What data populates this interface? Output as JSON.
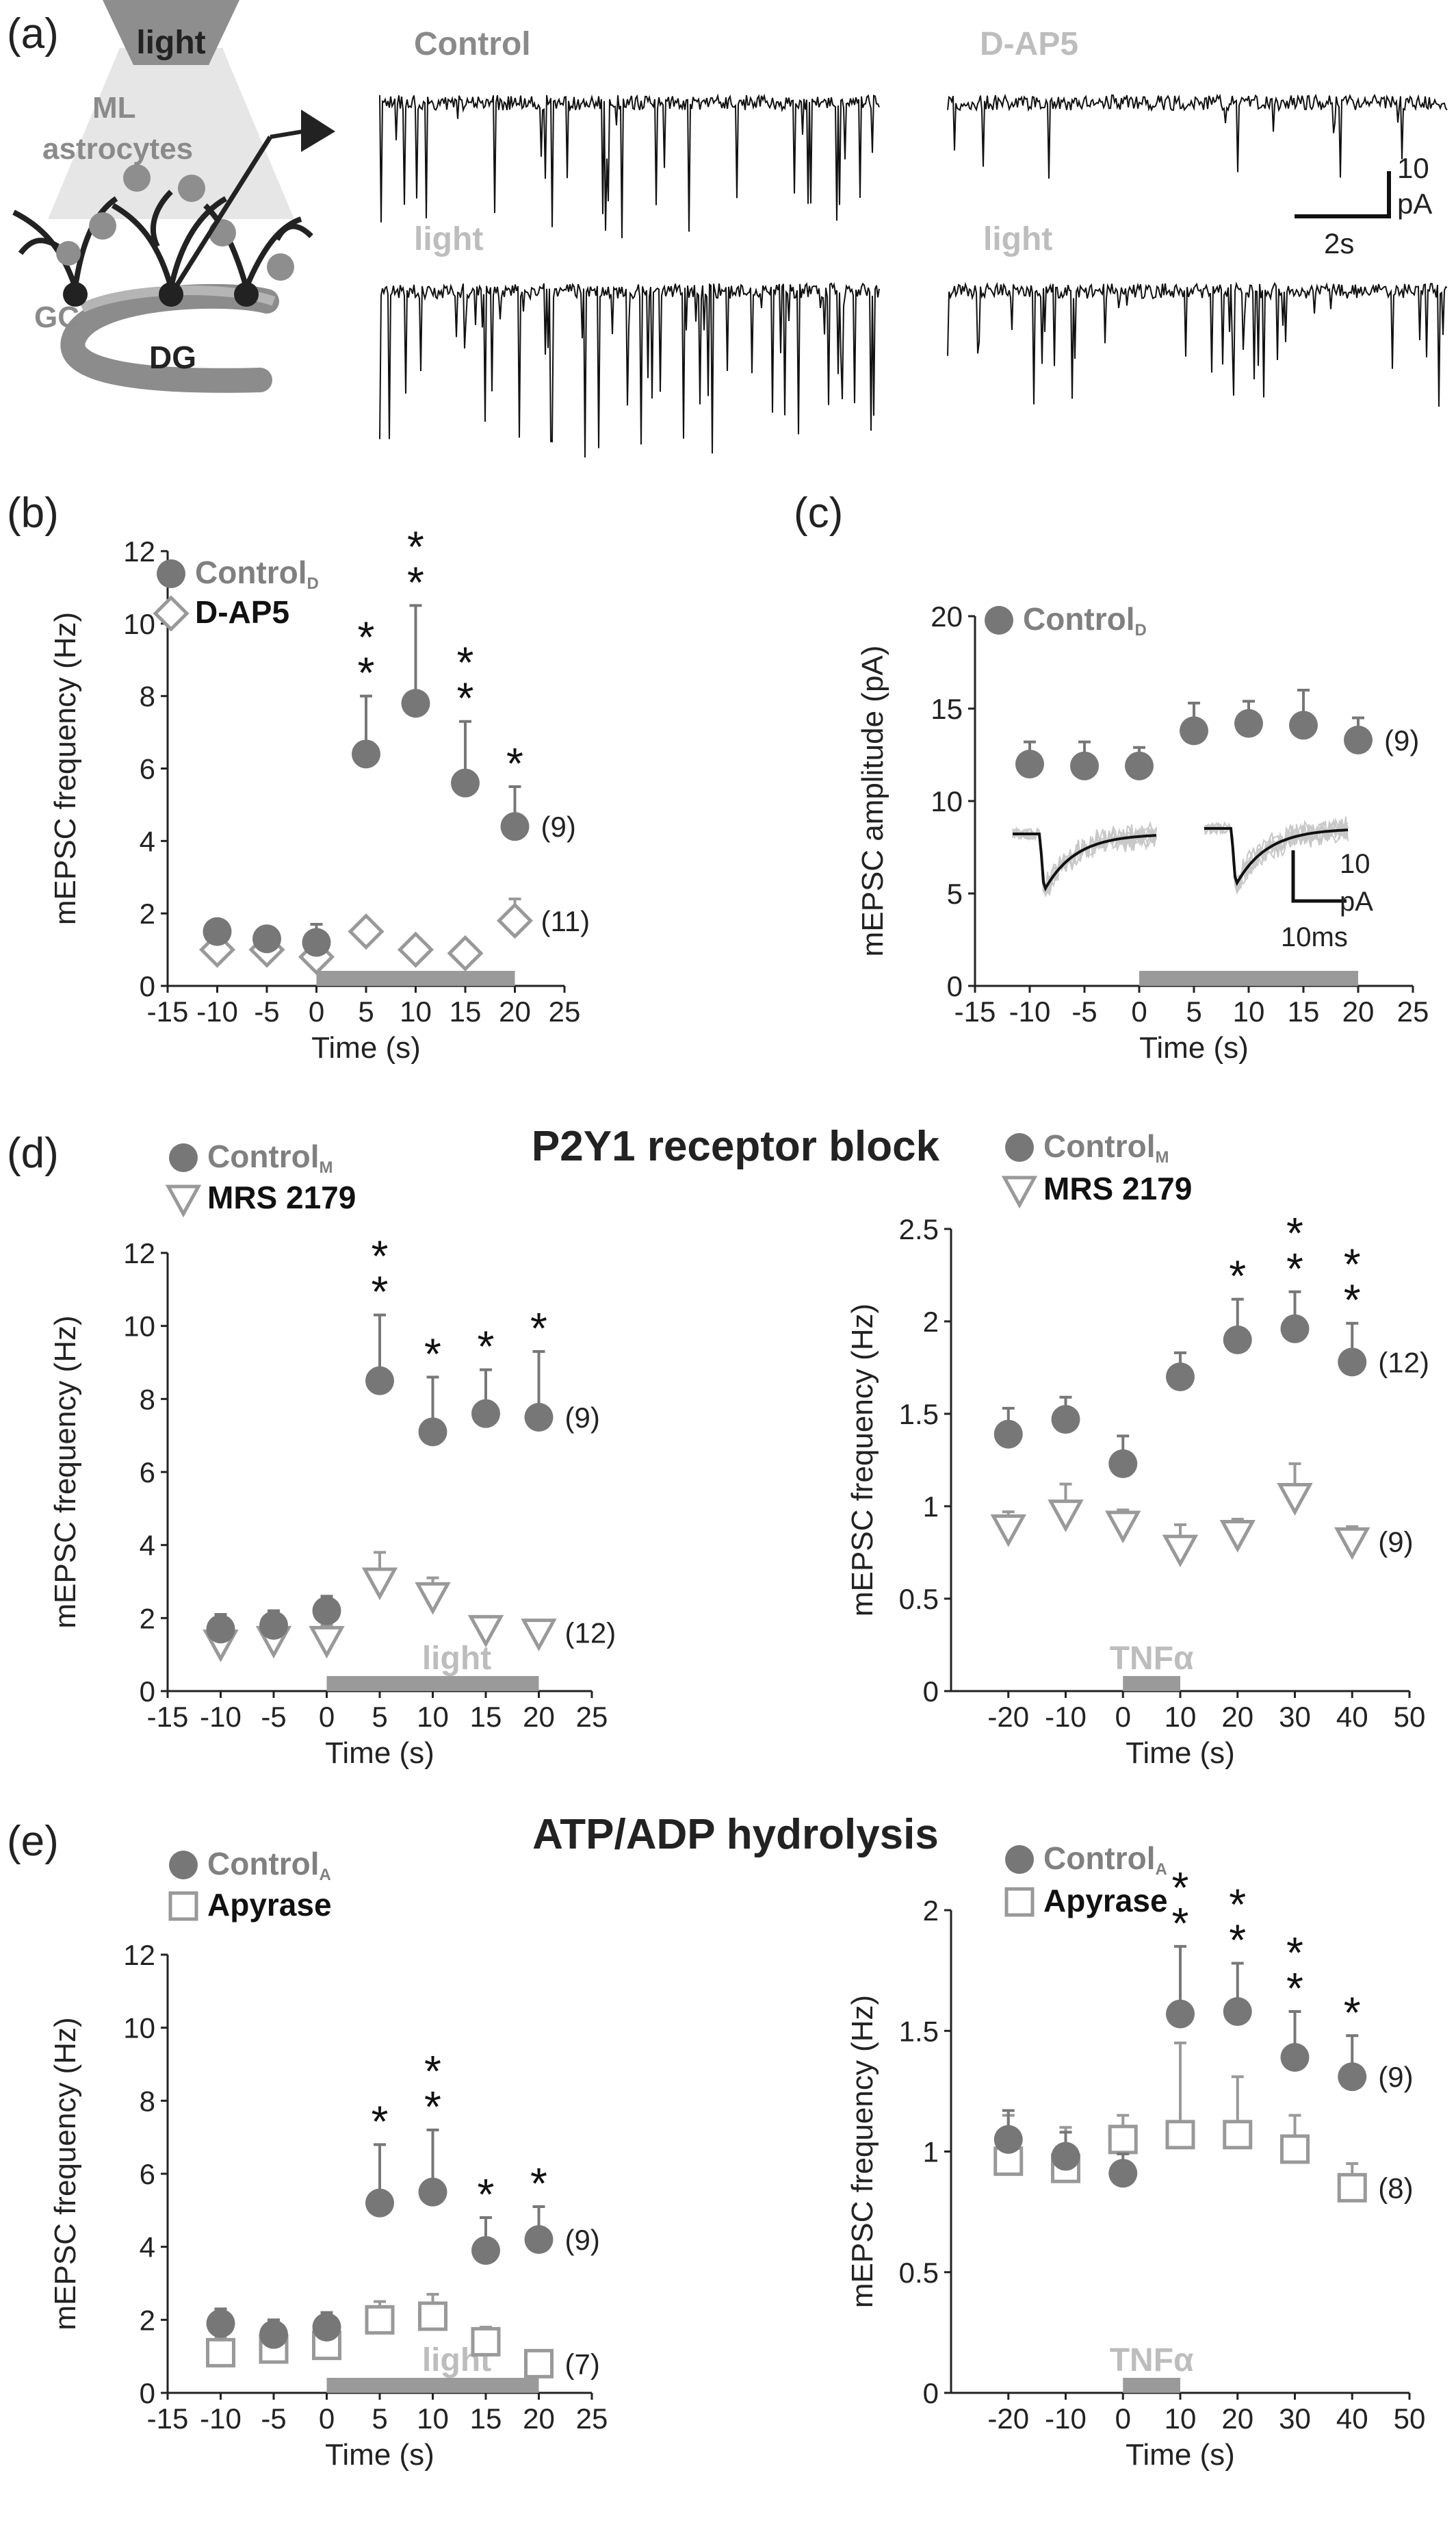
{
  "panel_letters": [
    "(a)",
    "(b)",
    "(c)",
    "(d)",
    "(e)"
  ],
  "colors": {
    "filled": "#777777",
    "open": "#999999",
    "bar": "#9a9a9a",
    "text_dark": "#222222",
    "text_gray": "#808080",
    "light_text": "#bdbdbd"
  },
  "schematic": {
    "light": "light",
    "ml": "ML",
    "astrocytes": "astrocytes",
    "gc": "GC",
    "dg": "DG"
  },
  "traces": {
    "control": "Control",
    "light_1": "light",
    "dap5": "D-AP5",
    "light_2": "light",
    "scale_y": "10",
    "scale_unit": "pA",
    "scale_x": "2s"
  },
  "headings": {
    "d": "P2Y1 receptor block",
    "e": "ATP/ADP hydrolysis"
  },
  "chart_data": [
    {
      "id": "b",
      "type": "scatter",
      "xlabel": "Time (s)",
      "ylabel": "mEPSC frequency (Hz)",
      "xlim": [
        -15,
        25
      ],
      "ylim": [
        0,
        12
      ],
      "xticks": [
        "-15",
        "-10",
        "-5",
        "0",
        "5",
        "10",
        "15",
        "20",
        "25"
      ],
      "yticks": [
        "0",
        "2",
        "4",
        "6",
        "8",
        "10",
        "12"
      ],
      "legend": [
        {
          "label": "Control",
          "sub": "D",
          "marker": "circle"
        },
        {
          "label": "D-AP5",
          "sub": "",
          "marker": "diamond"
        }
      ],
      "stim_bar": {
        "from": 0,
        "to": 20,
        "label": ""
      },
      "series": [
        {
          "marker": "circle",
          "x": [
            -10,
            -5,
            0,
            5,
            10,
            15,
            20
          ],
          "y": [
            1.5,
            1.3,
            1.2,
            6.4,
            7.8,
            5.6,
            4.4
          ],
          "err": [
            0.3,
            0.3,
            0.5,
            1.6,
            2.7,
            1.7,
            1.1
          ],
          "n": "(9)",
          "stars": [
            "",
            "",
            "",
            "**",
            "**",
            "**",
            "*"
          ]
        },
        {
          "marker": "diamond",
          "x": [
            -10,
            -5,
            0,
            5,
            10,
            15,
            20
          ],
          "y": [
            1.0,
            1.0,
            0.8,
            1.5,
            1.0,
            0.9,
            1.8
          ],
          "err": [
            0.4,
            0.3,
            0.3,
            0.0,
            0.0,
            0.0,
            0.6
          ],
          "n": "(11)",
          "stars": []
        }
      ]
    },
    {
      "id": "c",
      "type": "scatter",
      "xlabel": "Time (s)",
      "ylabel": "mEPSC amplitude (pA)",
      "xlim": [
        -15,
        25
      ],
      "ylim": [
        0,
        20
      ],
      "xticks": [
        "-15",
        "-10",
        "-5",
        "0",
        "5",
        "10",
        "15",
        "20",
        "25"
      ],
      "yticks": [
        "0",
        "5",
        "10",
        "15",
        "20"
      ],
      "legend": [
        {
          "label": "Control",
          "sub": "D",
          "marker": "circle"
        }
      ],
      "stim_bar": {
        "from": 0,
        "to": 20,
        "label": ""
      },
      "inset": {
        "scale_y": "10",
        "scale_unit": "pA",
        "scale_x": "10ms"
      },
      "series": [
        {
          "marker": "circle",
          "x": [
            -10,
            -5,
            0,
            5,
            10,
            15,
            20
          ],
          "y": [
            12.0,
            11.9,
            11.9,
            13.8,
            14.2,
            14.1,
            13.3
          ],
          "err": [
            1.2,
            1.3,
            1.0,
            1.5,
            1.2,
            1.9,
            1.2
          ],
          "n": "(9)",
          "stars": []
        }
      ]
    },
    {
      "id": "d-left",
      "type": "scatter",
      "xlabel": "Time (s)",
      "ylabel": "mEPSC frequency (Hz)",
      "xlim": [
        -15,
        25
      ],
      "ylim": [
        0,
        12
      ],
      "xticks": [
        "-15",
        "-10",
        "-5",
        "0",
        "5",
        "10",
        "15",
        "20",
        "25"
      ],
      "yticks": [
        "0",
        "2",
        "4",
        "6",
        "8",
        "10",
        "12"
      ],
      "legend": [
        {
          "label": "Control",
          "sub": "M",
          "marker": "circle"
        },
        {
          "label": "MRS 2179",
          "sub": "",
          "marker": "triangle"
        }
      ],
      "stim_bar": {
        "from": 0,
        "to": 20,
        "label": "light"
      },
      "series": [
        {
          "marker": "circle",
          "x": [
            -10,
            -5,
            0,
            5,
            10,
            15,
            20
          ],
          "y": [
            1.7,
            1.8,
            2.2,
            8.5,
            7.1,
            7.6,
            7.5
          ],
          "err": [
            0.4,
            0.4,
            0.4,
            1.8,
            1.5,
            1.2,
            1.8
          ],
          "n": "(9)",
          "stars": [
            "",
            "",
            "",
            "**",
            "*",
            "*",
            "*"
          ]
        },
        {
          "marker": "triangle",
          "x": [
            -10,
            -5,
            0,
            5,
            10,
            15,
            20
          ],
          "y": [
            1.3,
            1.4,
            1.4,
            3.0,
            2.6,
            1.7,
            1.6
          ],
          "err": [
            0.4,
            0.4,
            0.4,
            0.8,
            0.5,
            0.3,
            0.3
          ],
          "n": "(12)",
          "stars": []
        }
      ]
    },
    {
      "id": "d-right",
      "type": "scatter",
      "xlabel": "Time (s)",
      "ylabel": "mEPSC frequency (Hz)",
      "xlim": [
        -30,
        50
      ],
      "ylim": [
        0,
        2.5
      ],
      "xticks": [
        "-20",
        "-10",
        "0",
        "10",
        "20",
        "30",
        "40",
        "50"
      ],
      "yticks": [
        "0",
        "0.5",
        "1",
        "1.5",
        "2",
        "2.5"
      ],
      "legend": [
        {
          "label": "Control",
          "sub": "M",
          "marker": "circle"
        },
        {
          "label": "MRS 2179",
          "sub": "",
          "marker": "triangle"
        }
      ],
      "stim_bar": {
        "from": 0,
        "to": 10,
        "label": "TNFα"
      },
      "series": [
        {
          "marker": "circle",
          "x": [
            -20,
            -10,
            0,
            10,
            20,
            30,
            40
          ],
          "y": [
            1.39,
            1.47,
            1.23,
            1.7,
            1.9,
            1.96,
            1.78
          ],
          "err": [
            0.14,
            0.12,
            0.15,
            0.13,
            0.22,
            0.2,
            0.21
          ],
          "n": "(12)",
          "stars": [
            "",
            "",
            "",
            "",
            "*",
            "**",
            "**"
          ]
        },
        {
          "marker": "triangle",
          "x": [
            -20,
            -10,
            0,
            10,
            20,
            30,
            40
          ],
          "y": [
            0.88,
            0.96,
            0.9,
            0.77,
            0.85,
            1.05,
            0.81
          ],
          "err": [
            0.09,
            0.16,
            0.08,
            0.13,
            0.08,
            0.18,
            0.08
          ],
          "n": "(9)",
          "stars": []
        }
      ]
    },
    {
      "id": "e-left",
      "type": "scatter",
      "xlabel": "Time (s)",
      "ylabel": "mEPSC frequency (Hz)",
      "xlim": [
        -15,
        25
      ],
      "ylim": [
        0,
        12
      ],
      "xticks": [
        "-15",
        "-10",
        "-5",
        "0",
        "5",
        "10",
        "15",
        "20",
        "25"
      ],
      "yticks": [
        "0",
        "2",
        "4",
        "6",
        "8",
        "10",
        "12"
      ],
      "legend": [
        {
          "label": "Control",
          "sub": "A",
          "marker": "circle"
        },
        {
          "label": "Apyrase",
          "sub": "",
          "marker": "square"
        }
      ],
      "stim_bar": {
        "from": 0,
        "to": 20,
        "label": "light"
      },
      "series": [
        {
          "marker": "circle",
          "x": [
            -10,
            -5,
            0,
            5,
            10,
            15,
            20
          ],
          "y": [
            1.9,
            1.6,
            1.8,
            5.2,
            5.5,
            3.9,
            4.2
          ],
          "err": [
            0.4,
            0.4,
            0.4,
            1.6,
            1.7,
            0.9,
            0.9
          ],
          "n": "(9)",
          "stars": [
            "",
            "",
            "",
            "*",
            "**",
            "*",
            "*"
          ]
        },
        {
          "marker": "square",
          "x": [
            -10,
            -5,
            0,
            5,
            10,
            15,
            20
          ],
          "y": [
            1.1,
            1.2,
            1.3,
            2.0,
            2.1,
            1.4,
            0.8
          ],
          "err": [
            0.4,
            0.5,
            0.5,
            0.5,
            0.6,
            0.4,
            0.3
          ],
          "n": "(7)",
          "stars": []
        }
      ]
    },
    {
      "id": "e-right",
      "type": "scatter",
      "xlabel": "Time (s)",
      "ylabel": "mEPSC frequency (Hz)",
      "xlim": [
        -30,
        50
      ],
      "ylim": [
        0,
        2
      ],
      "xticks": [
        "-20",
        "-10",
        "0",
        "10",
        "20",
        "30",
        "40",
        "50"
      ],
      "yticks": [
        "0",
        "0.5",
        "1",
        "1.5",
        "2"
      ],
      "legend": [
        {
          "label": "Control",
          "sub": "A",
          "marker": "circle"
        },
        {
          "label": "Apyrase",
          "sub": "",
          "marker": "square"
        }
      ],
      "stim_bar": {
        "from": 0,
        "to": 10,
        "label": "TNFα"
      },
      "series": [
        {
          "marker": "circle",
          "x": [
            -20,
            -10,
            0,
            10,
            20,
            30,
            40
          ],
          "y": [
            1.05,
            0.98,
            0.91,
            1.57,
            1.58,
            1.39,
            1.31
          ],
          "err": [
            0.12,
            0.1,
            0.08,
            0.28,
            0.2,
            0.19,
            0.17
          ],
          "n": "(9)",
          "stars": [
            "",
            "",
            "",
            "**",
            "**",
            "**",
            "*"
          ]
        },
        {
          "marker": "square",
          "x": [
            -20,
            -10,
            0,
            10,
            20,
            30,
            40
          ],
          "y": [
            0.96,
            0.93,
            1.05,
            1.07,
            1.07,
            1.01,
            0.85
          ],
          "err": [
            0.19,
            0.17,
            0.1,
            0.38,
            0.24,
            0.14,
            0.1
          ],
          "n": "(8)",
          "stars": []
        }
      ]
    }
  ]
}
